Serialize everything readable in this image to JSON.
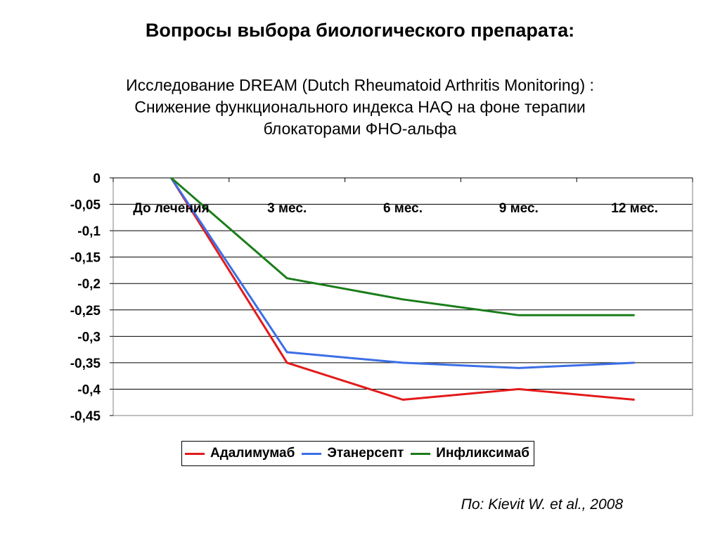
{
  "slide": {
    "title": "Вопросы выбора биологического препарата:",
    "subtitle_lines": [
      "Исследование DREAM (Dutch Rheumatoid Arthritis Monitoring) :",
      "Снижение функционального индекса HAQ на фоне терапии",
      "блокаторами ФНО-альфа"
    ],
    "source": "По: Kievit W. et al., 2008"
  },
  "chart_data": {
    "type": "line",
    "categories": [
      "До лечения",
      "3 мес.",
      "6 мес.",
      "9 мес.",
      "12 мес."
    ],
    "series": [
      {
        "name": "Адалимумаб",
        "color": "#e21a1a",
        "values": [
          0,
          -0.35,
          -0.42,
          -0.4,
          -0.42
        ]
      },
      {
        "name": "Этанерсепт",
        "color": "#3c6ee6",
        "values": [
          0,
          -0.33,
          -0.35,
          -0.36,
          -0.35
        ]
      },
      {
        "name": "Инфликсимаб",
        "color": "#1a7d1a",
        "values": [
          0,
          -0.19,
          -0.23,
          -0.26,
          -0.26
        ]
      }
    ],
    "yticks": [
      "0",
      "-0,05",
      "-0,1",
      "-0,15",
      "-0,2",
      "-0,25",
      "-0,3",
      "-0,35",
      "-0,4",
      "-0,45"
    ],
    "ylim": [
      -0.45,
      0
    ],
    "grid": true,
    "legend_position": "bottom"
  }
}
